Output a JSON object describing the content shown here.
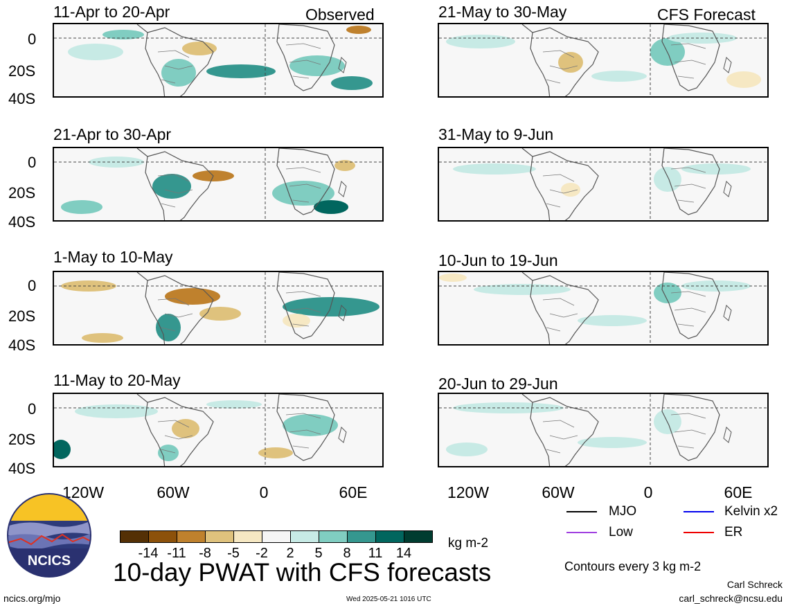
{
  "observed_label": "Observed",
  "forecast_label": "CFS Forecast",
  "observed_panels": [
    {
      "title": "11-Apr to 20-Apr"
    },
    {
      "title": "21-Apr to 30-Apr"
    },
    {
      "title": "1-May to 10-May"
    },
    {
      "title": "11-May to 20-May"
    }
  ],
  "forecast_panels": [
    {
      "title": "21-May to 30-May"
    },
    {
      "title": "31-May to 9-Jun"
    },
    {
      "title": "10-Jun to 19-Jun"
    },
    {
      "title": "20-Jun to 29-Jun"
    }
  ],
  "y_ticks": [
    "0",
    "20S",
    "40S"
  ],
  "x_ticks": [
    "120W",
    "60W",
    "0",
    "60E"
  ],
  "legend": {
    "mjo": {
      "label": "MJO",
      "color": "#000000"
    },
    "kelvin": {
      "label": "Kelvin x2",
      "color": "#0000ee"
    },
    "low": {
      "label": "Low",
      "color": "#a040e0"
    },
    "er": {
      "label": "ER",
      "color": "#ee0000"
    }
  },
  "colorbar": {
    "colors": [
      "#543005",
      "#8c510a",
      "#bf812d",
      "#dfc27d",
      "#f6e8c3",
      "#f5f5f5",
      "#c7eae5",
      "#80cdc1",
      "#35978f",
      "#01665e",
      "#003c30"
    ],
    "labels": [
      "-14",
      "-11",
      "-8",
      "-5",
      "-2",
      "2",
      "5",
      "8",
      "11",
      "14"
    ],
    "units": "kg m-2"
  },
  "main_title": "10-day PWAT with CFS forecasts",
  "contours_note": "Contours every 3 kg m-2",
  "author": "Carl Schreck",
  "email": "carl_schreck@ncsu.edu",
  "site": "ncics.org/mjo",
  "timestamp": "Wed 2025-05-21 1016 UTC",
  "logo_text": "NCICS"
}
